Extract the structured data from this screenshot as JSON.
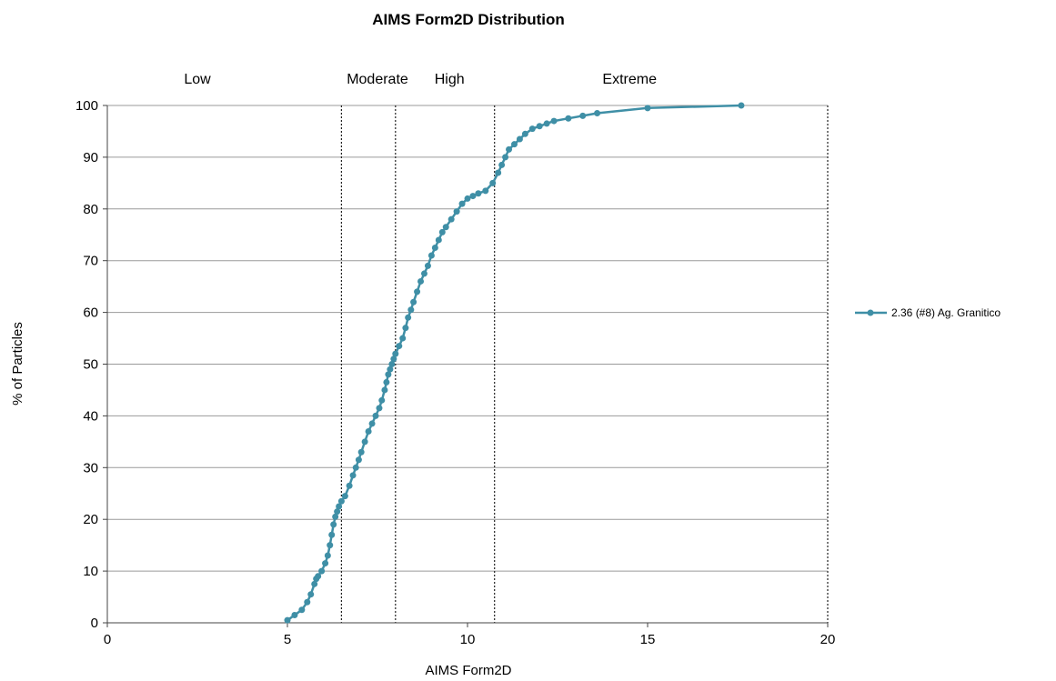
{
  "chart_data": {
    "type": "line",
    "title": "AIMS Form2D Distribution",
    "xlabel": "AIMS Form2D",
    "ylabel": "% of Particles",
    "xlim": [
      0,
      20
    ],
    "ylim": [
      0,
      100
    ],
    "x_ticks": [
      "0",
      "5",
      "10",
      "15",
      "20"
    ],
    "y_ticks": [
      "0",
      "10",
      "20",
      "30",
      "40",
      "50",
      "60",
      "70",
      "80",
      "90",
      "100"
    ],
    "grid": {
      "horizontal": true,
      "vertical": false
    },
    "legend_position": "right",
    "line_color": "#3f8fa6",
    "thresholds": [
      6.5,
      8.0,
      10.75,
      20
    ],
    "regions": [
      {
        "label": "Low",
        "x": 2.5
      },
      {
        "label": "Moderate",
        "x": 7.5
      },
      {
        "label": "High",
        "x": 9.5
      },
      {
        "label": "Extreme",
        "x": 14.5
      }
    ],
    "series": [
      {
        "name": "2.36 (#8) Ag. Granitico",
        "x": [
          5.0,
          5.2,
          5.4,
          5.55,
          5.65,
          5.75,
          5.8,
          5.85,
          5.95,
          6.05,
          6.12,
          6.18,
          6.23,
          6.28,
          6.33,
          6.38,
          6.43,
          6.5,
          6.6,
          6.72,
          6.82,
          6.9,
          6.98,
          7.05,
          7.15,
          7.25,
          7.35,
          7.45,
          7.55,
          7.62,
          7.7,
          7.75,
          7.8,
          7.85,
          7.9,
          7.95,
          8.0,
          8.1,
          8.2,
          8.28,
          8.35,
          8.43,
          8.5,
          8.6,
          8.7,
          8.8,
          8.9,
          9.0,
          9.1,
          9.2,
          9.3,
          9.4,
          9.55,
          9.7,
          9.85,
          10.0,
          10.15,
          10.3,
          10.5,
          10.7,
          10.85,
          10.95,
          11.05,
          11.15,
          11.3,
          11.45,
          11.6,
          11.8,
          12.0,
          12.2,
          12.4,
          12.8,
          13.2,
          13.6,
          15.0,
          17.6
        ],
        "y": [
          0.5,
          1.5,
          2.5,
          4.0,
          5.5,
          7.5,
          8.5,
          9.0,
          10.0,
          11.5,
          13.0,
          15.0,
          17.0,
          19.0,
          20.5,
          21.5,
          22.5,
          23.5,
          24.5,
          26.5,
          28.5,
          30.0,
          31.5,
          33.0,
          35.0,
          37.0,
          38.5,
          40.0,
          41.5,
          43.0,
          45.0,
          46.5,
          48.0,
          49.0,
          50.0,
          51.0,
          52.0,
          53.5,
          55.0,
          57.0,
          59.0,
          60.5,
          62.0,
          64.0,
          66.0,
          67.5,
          69.0,
          71.0,
          72.5,
          74.0,
          75.5,
          76.5,
          78.0,
          79.5,
          81.0,
          82.0,
          82.5,
          83.0,
          83.5,
          85.0,
          87.0,
          88.5,
          90.0,
          91.5,
          92.5,
          93.5,
          94.5,
          95.5,
          96.0,
          96.5,
          97.0,
          97.5,
          98.0,
          98.5,
          99.5,
          100.0
        ]
      }
    ]
  }
}
